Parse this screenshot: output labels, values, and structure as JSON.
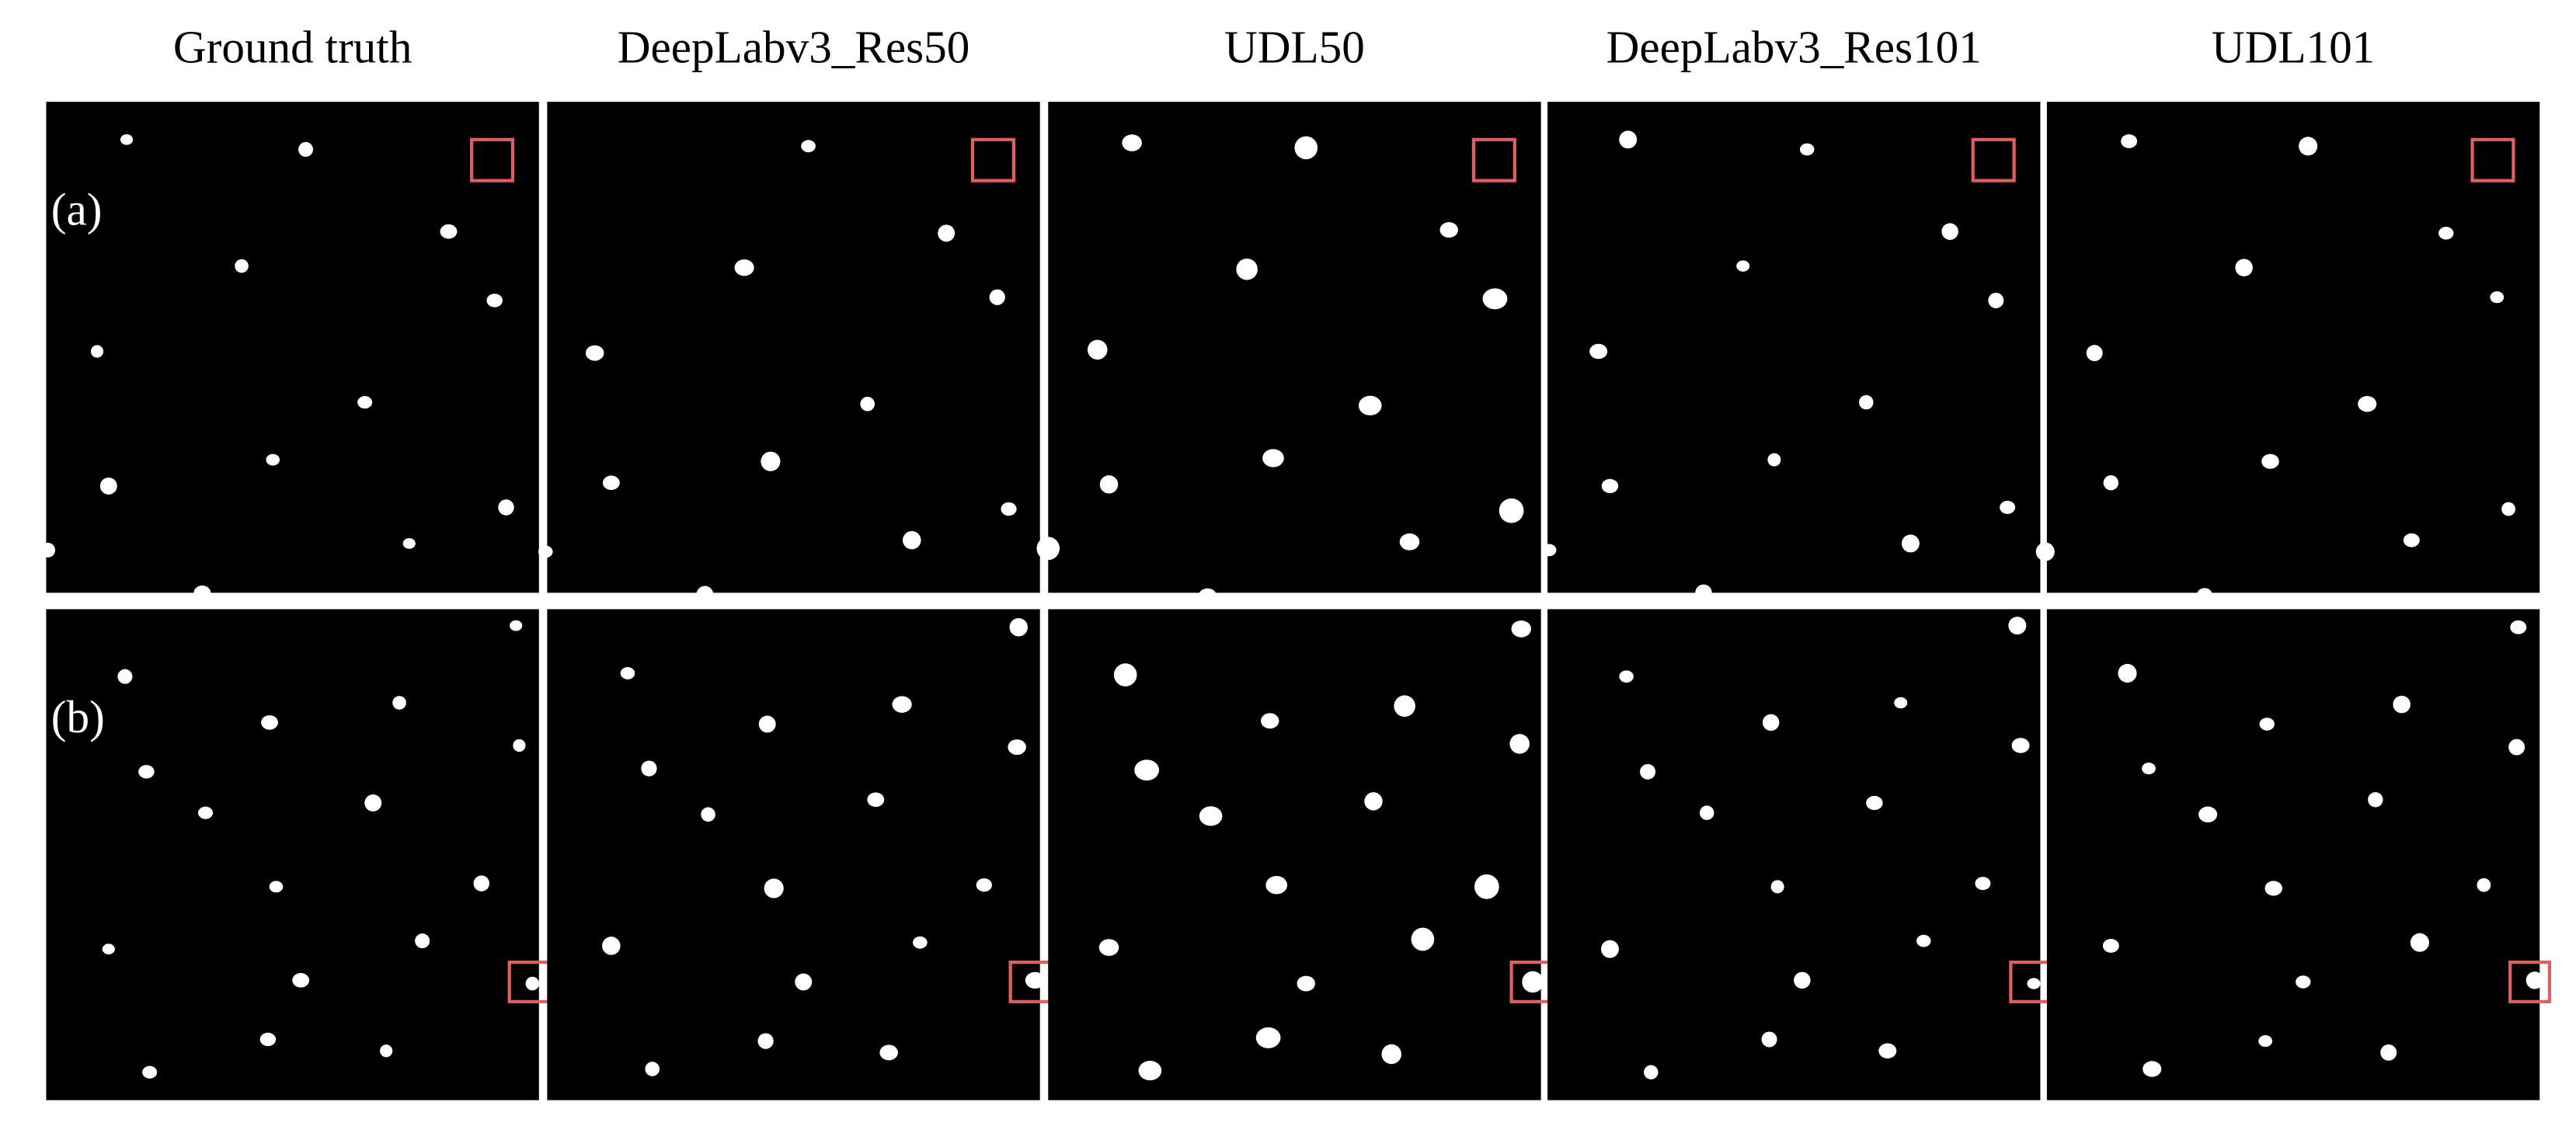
{
  "columns": [
    "Ground truth",
    "DeepLabv3_Res50",
    "UDL50",
    "DeepLabv3_Res101",
    "UDL101"
  ],
  "rows": [
    "(a)",
    "(b)"
  ]
}
